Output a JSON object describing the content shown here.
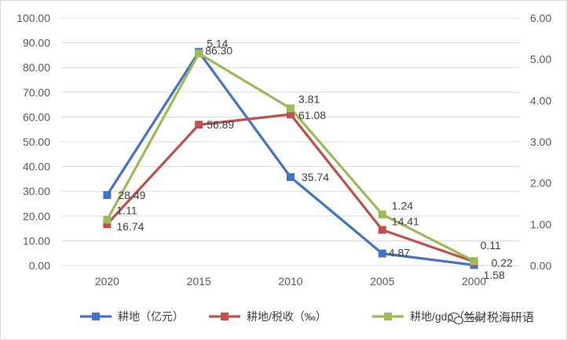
{
  "chart_data": {
    "type": "line",
    "categories": [
      "2020",
      "2015",
      "2010",
      "2005",
      "2000"
    ],
    "left_axis": {
      "min": 0,
      "max": 100,
      "step": 10,
      "ticks": [
        "0.00",
        "10.00",
        "20.00",
        "30.00",
        "40.00",
        "50.00",
        "60.00",
        "70.00",
        "80.00",
        "90.00",
        "100.00"
      ]
    },
    "right_axis": {
      "min": 0,
      "max": 6,
      "step": 1,
      "ticks": [
        "0.00",
        "1.00",
        "2.00",
        "3.00",
        "4.00",
        "5.00",
        "6.00"
      ]
    },
    "gridlines": true,
    "legend_position": "bottom",
    "series": [
      {
        "name": "耕地（亿元）",
        "axis": "left",
        "color": "#4472c4",
        "values": [
          28.49,
          86.3,
          35.74,
          4.87,
          0.22
        ],
        "labels": [
          "28.49",
          "86.30",
          "35.74",
          "4.87",
          "0.22"
        ]
      },
      {
        "name": "耕地/税收（‰）",
        "axis": "left",
        "color": "#c0504d",
        "values": [
          16.74,
          56.89,
          61.08,
          14.41,
          1.58
        ],
        "labels": [
          "16.74",
          "56.89",
          "61.08",
          "14.41",
          "1.58"
        ]
      },
      {
        "name": "耕地/gdp（‱",
        "axis": "right",
        "color": "#9bbb59",
        "values": [
          1.11,
          5.14,
          3.81,
          1.24,
          0.11
        ],
        "labels": [
          "1.11",
          "5.14",
          "3.81",
          "1.24",
          "0.11"
        ]
      }
    ]
  },
  "watermark": {
    "text": "兰财税海研语",
    "icon": "wechat-icon"
  }
}
